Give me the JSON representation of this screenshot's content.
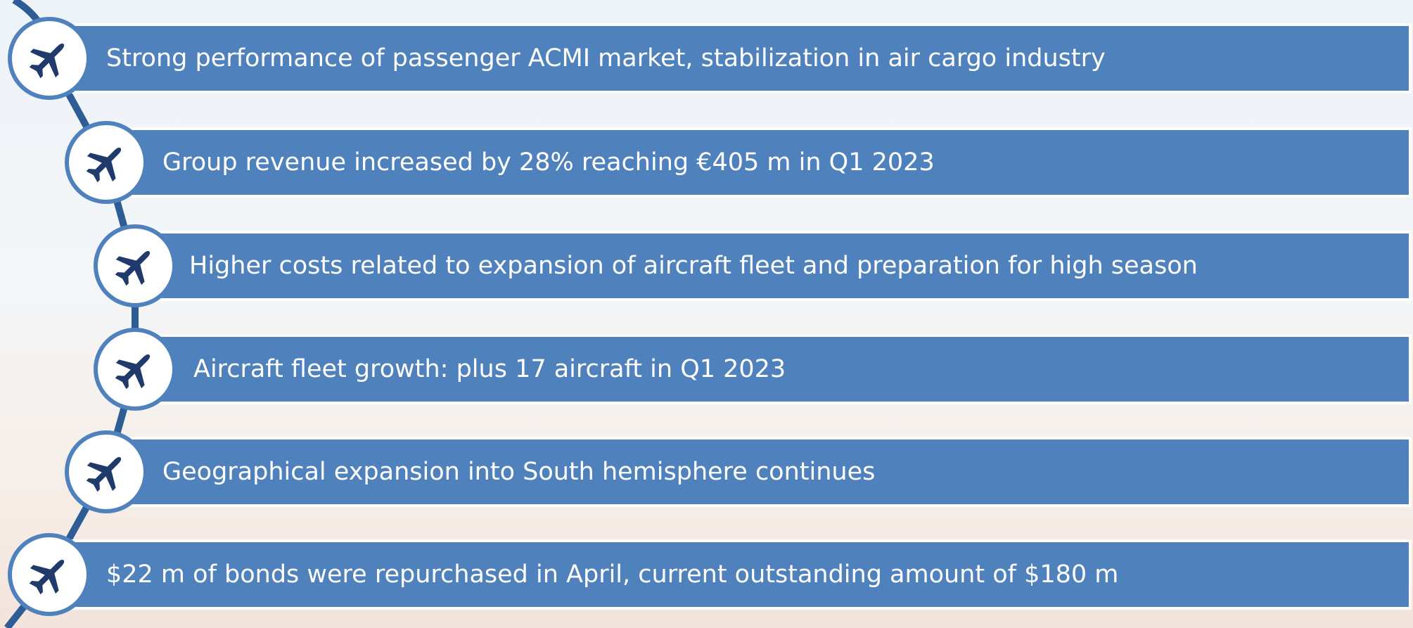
{
  "items": [
    "Strong performance of passenger ACMI market, stabilization in air cargo industry",
    "Group revenue increased by 28% reaching €405 m in Q1 2023",
    "Higher costs related to expansion of aircraft fleet and preparation for high season",
    "Aircraft fleet growth: plus 17 aircraft in Q1 2023",
    "Geographical expansion into South hemisphere continues",
    "$22 m of bonds were repurchased in April, current outstanding amount of $180 m"
  ]
}
